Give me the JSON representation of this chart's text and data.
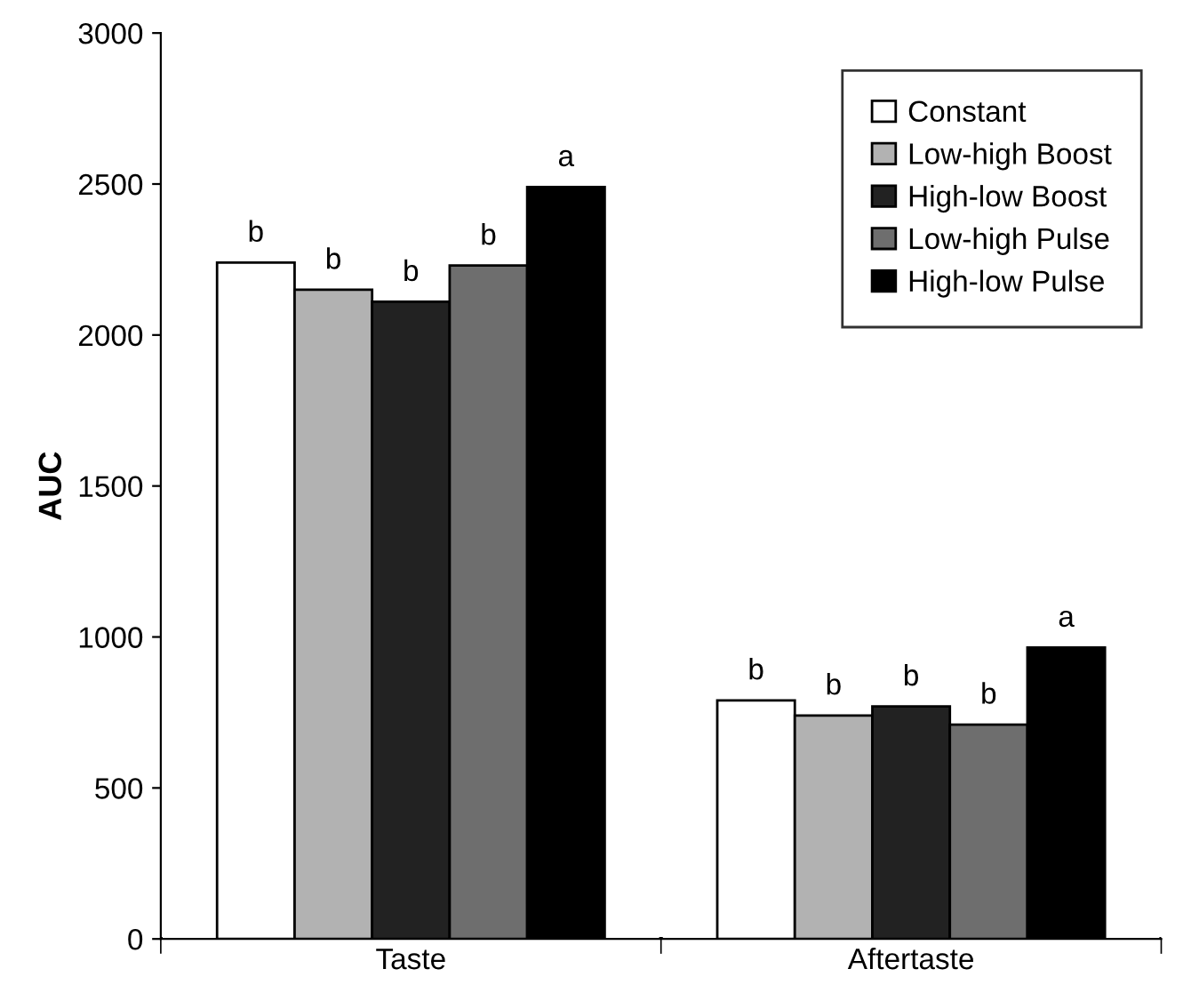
{
  "chart_data": {
    "type": "bar",
    "ylabel": "AUC",
    "categories": [
      "Taste",
      "Aftertaste"
    ],
    "series": [
      {
        "name": "Constant",
        "color": "#ffffff",
        "values": [
          2240,
          790
        ]
      },
      {
        "name": "Low-high Boost",
        "color": "#b2b2b2",
        "values": [
          2150,
          740
        ]
      },
      {
        "name": "High-low Boost",
        "color": "#222222",
        "values": [
          2110,
          770
        ]
      },
      {
        "name": "Low-high Pulse",
        "color": "#6e6e6e",
        "values": [
          2230,
          710
        ]
      },
      {
        "name": "High-low Pulse",
        "color": "#000000",
        "values": [
          2490,
          965
        ]
      }
    ],
    "annotations": [
      "b",
      "b",
      "b",
      "b",
      "a",
      "b",
      "b",
      "b",
      "b",
      "a"
    ],
    "ylim": [
      0,
      3000
    ],
    "yticks": [
      0,
      500,
      1000,
      1500,
      2000,
      2500,
      3000
    ],
    "grid": false,
    "legend": "top right"
  }
}
